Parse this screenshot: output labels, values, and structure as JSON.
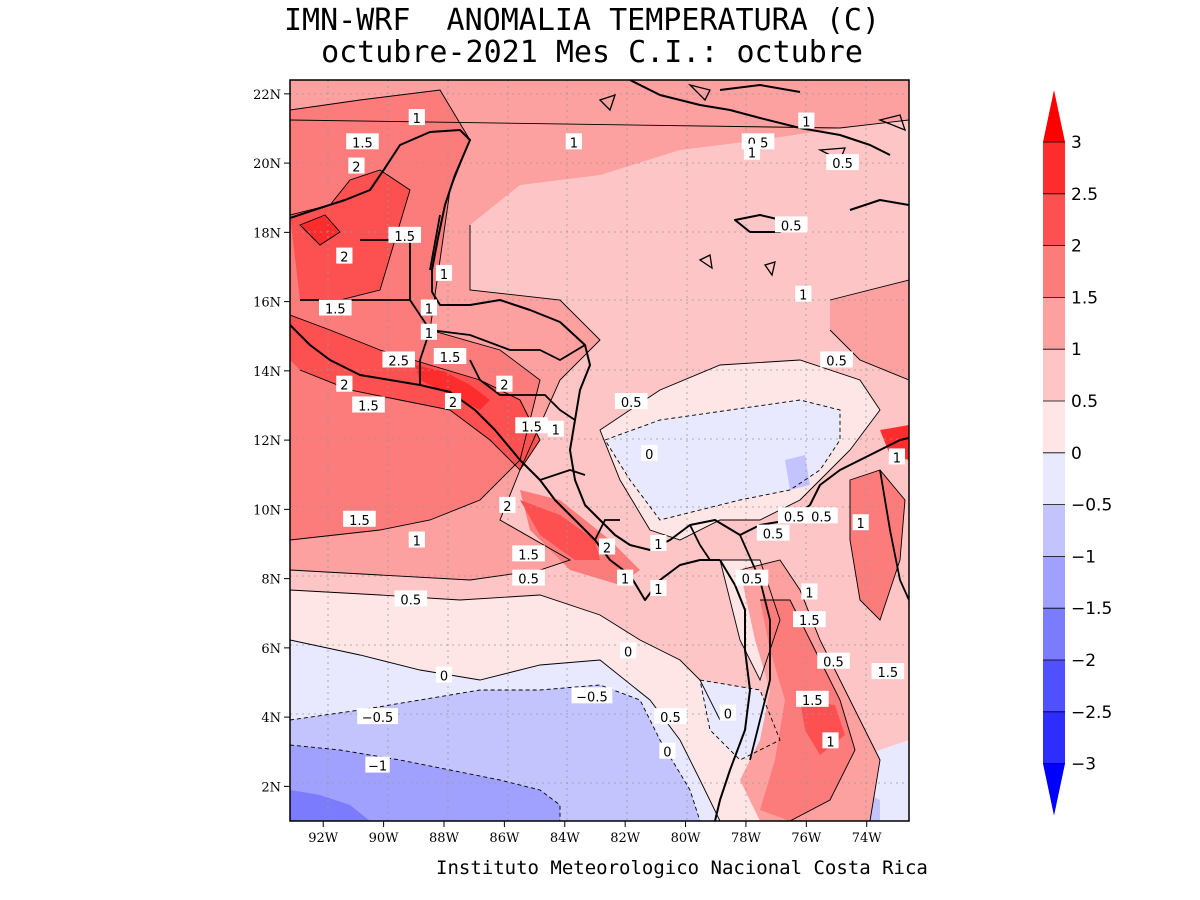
{
  "header": {
    "title": "IMN-WRF  ANOMALIA TEMPERATURA (C)",
    "subtitle": "octubre-2021 Mes C.I.: octubre"
  },
  "footer": {
    "credit": "Instituto Meteorologico Nacional Costa Rica"
  },
  "map": {
    "extent": {
      "lon": [
        -93.1,
        -72.6
      ],
      "lat": [
        1.0,
        22.4
      ]
    },
    "lon_ticks": [
      {
        "value": -92,
        "label": "92W"
      },
      {
        "value": -90,
        "label": "90W"
      },
      {
        "value": -88,
        "label": "88W"
      },
      {
        "value": -86,
        "label": "86W"
      },
      {
        "value": -84,
        "label": "84W"
      },
      {
        "value": -82,
        "label": "82W"
      },
      {
        "value": -80,
        "label": "80W"
      },
      {
        "value": -78,
        "label": "78W"
      },
      {
        "value": -76,
        "label": "76W"
      },
      {
        "value": -74,
        "label": "74W"
      }
    ],
    "lat_ticks": [
      {
        "value": 2,
        "label": "2N"
      },
      {
        "value": 4,
        "label": "4N"
      },
      {
        "value": 6,
        "label": "6N"
      },
      {
        "value": 8,
        "label": "8N"
      },
      {
        "value": 10,
        "label": "10N"
      },
      {
        "value": 12,
        "label": "12N"
      },
      {
        "value": 14,
        "label": "14N"
      },
      {
        "value": 16,
        "label": "16N"
      },
      {
        "value": 18,
        "label": "18N"
      },
      {
        "value": 20,
        "label": "20N"
      },
      {
        "value": 22,
        "label": "22N"
      }
    ],
    "contour_labels": [
      {
        "text": "1",
        "lon": -88.9,
        "lat": 21.3
      },
      {
        "text": "1.5",
        "lon": -90.7,
        "lat": 20.6
      },
      {
        "text": "2",
        "lon": -90.9,
        "lat": 19.9
      },
      {
        "text": "1",
        "lon": -83.7,
        "lat": 20.6
      },
      {
        "text": "1.5",
        "lon": -89.3,
        "lat": 17.9
      },
      {
        "text": "2",
        "lon": -91.3,
        "lat": 17.3
      },
      {
        "text": "1",
        "lon": -88.0,
        "lat": 16.8
      },
      {
        "text": "1.5",
        "lon": -91.6,
        "lat": 15.8
      },
      {
        "text": "1",
        "lon": -88.5,
        "lat": 15.8
      },
      {
        "text": "1",
        "lon": -88.5,
        "lat": 15.1
      },
      {
        "text": "2.5",
        "lon": -89.5,
        "lat": 14.3
      },
      {
        "text": "1.5",
        "lon": -87.8,
        "lat": 14.4
      },
      {
        "text": "2",
        "lon": -91.3,
        "lat": 13.6
      },
      {
        "text": "2",
        "lon": -86.0,
        "lat": 13.6
      },
      {
        "text": "1.5",
        "lon": -90.5,
        "lat": 13.0
      },
      {
        "text": "2",
        "lon": -87.7,
        "lat": 13.1
      },
      {
        "text": "1.5",
        "lon": -85.1,
        "lat": 12.4
      },
      {
        "text": "1",
        "lon": -84.3,
        "lat": 12.3
      },
      {
        "text": "0.5",
        "lon": -81.8,
        "lat": 13.1
      },
      {
        "text": "0",
        "lon": -81.2,
        "lat": 11.6
      },
      {
        "text": "0.5",
        "lon": -75.0,
        "lat": 14.3
      },
      {
        "text": "1",
        "lon": -76.1,
        "lat": 16.2
      },
      {
        "text": "1",
        "lon": -76.0,
        "lat": 21.2
      },
      {
        "text": "0.5",
        "lon": -77.6,
        "lat": 20.6
      },
      {
        "text": "1",
        "lon": -77.8,
        "lat": 20.3
      },
      {
        "text": "0.5",
        "lon": -74.8,
        "lat": 20.0
      },
      {
        "text": "0.5",
        "lon": -76.5,
        "lat": 18.2
      },
      {
        "text": "1",
        "lon": -73.0,
        "lat": 11.5
      },
      {
        "text": "0.5",
        "lon": -76.4,
        "lat": 9.8
      },
      {
        "text": "0.5",
        "lon": -75.5,
        "lat": 9.8
      },
      {
        "text": "1",
        "lon": -74.2,
        "lat": 9.6
      },
      {
        "text": "0.5",
        "lon": -77.1,
        "lat": 9.3
      },
      {
        "text": "1.5",
        "lon": -90.8,
        "lat": 9.7
      },
      {
        "text": "1",
        "lon": -88.9,
        "lat": 9.1
      },
      {
        "text": "2",
        "lon": -85.9,
        "lat": 10.1
      },
      {
        "text": "2",
        "lon": -82.6,
        "lat": 8.9
      },
      {
        "text": "1",
        "lon": -80.9,
        "lat": 9.0
      },
      {
        "text": "1.5",
        "lon": -85.2,
        "lat": 8.7
      },
      {
        "text": "0.5",
        "lon": -85.2,
        "lat": 8.0
      },
      {
        "text": "1",
        "lon": -82.0,
        "lat": 8.0
      },
      {
        "text": "1",
        "lon": -80.9,
        "lat": 7.7
      },
      {
        "text": "0.5",
        "lon": -77.8,
        "lat": 8.0
      },
      {
        "text": "1",
        "lon": -75.9,
        "lat": 7.6
      },
      {
        "text": "1.5",
        "lon": -75.9,
        "lat": 6.8
      },
      {
        "text": "0.5",
        "lon": -89.1,
        "lat": 7.4
      },
      {
        "text": "0",
        "lon": -81.9,
        "lat": 5.9
      },
      {
        "text": "0.5",
        "lon": -75.1,
        "lat": 5.6
      },
      {
        "text": "1.5",
        "lon": -73.3,
        "lat": 5.3
      },
      {
        "text": "0",
        "lon": -88.0,
        "lat": 5.2
      },
      {
        "text": "-0.5",
        "lon": -83.1,
        "lat": 4.6
      },
      {
        "text": "1.5",
        "lon": -75.8,
        "lat": 4.5
      },
      {
        "text": "-0.5",
        "lon": -90.2,
        "lat": 4.0
      },
      {
        "text": "0.5",
        "lon": -80.5,
        "lat": 4.0
      },
      {
        "text": "0",
        "lon": -78.6,
        "lat": 4.1
      },
      {
        "text": "0",
        "lon": -80.6,
        "lat": 3.0
      },
      {
        "text": "1",
        "lon": -75.2,
        "lat": 3.3
      },
      {
        "text": "-1",
        "lon": -90.2,
        "lat": 2.6
      }
    ]
  },
  "colorbar": {
    "levels": [
      {
        "value": "3",
        "color": "#fe0000"
      },
      {
        "value": "2.5",
        "color": "#fe2d2d"
      },
      {
        "value": "2",
        "color": "#fd5050"
      },
      {
        "value": "1.5",
        "color": "#fc7b7b"
      },
      {
        "value": "1",
        "color": "#fca0a0"
      },
      {
        "value": "0.5",
        "color": "#fdc5c5"
      },
      {
        "value": "0",
        "color": "#fee6e6"
      },
      {
        "value": "-0.5",
        "color": "#e8e8fe"
      },
      {
        "value": "-1",
        "color": "#c3c3fe"
      },
      {
        "value": "-1.5",
        "color": "#a0a0fe"
      },
      {
        "value": "-2",
        "color": "#7b7bfe"
      },
      {
        "value": "-2.5",
        "color": "#5050fe"
      },
      {
        "value": "-3",
        "color": "#2d2dfe"
      }
    ],
    "top_arrow_color": "#fe0000",
    "bottom_arrow_color": "#0000fe"
  }
}
